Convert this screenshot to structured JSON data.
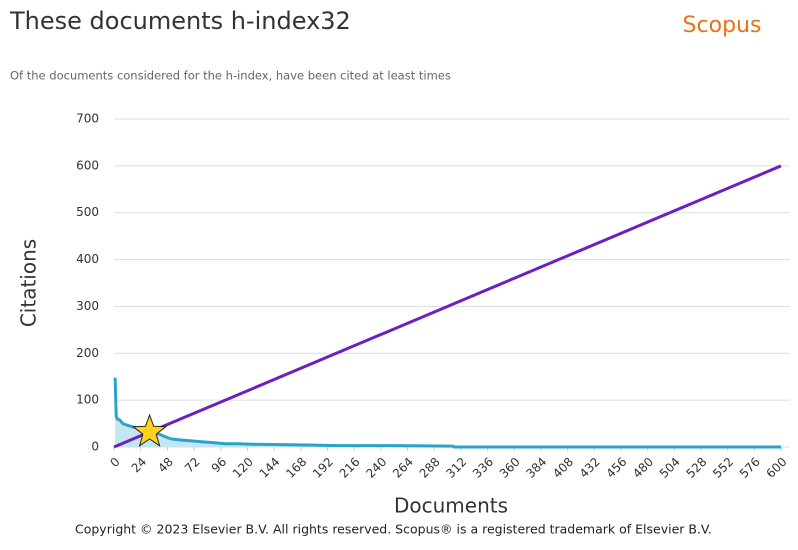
{
  "chart_data": {
    "type": "area",
    "title": "These documents h-index32",
    "subtitle": "Of the documents considered for the h-index, have been cited at least times",
    "brand": "Scopus",
    "footer": "Copyright © 2023 Elsevier B.V. All rights reserved. Scopus® is a registered trademark of Elsevier B.V.",
    "x_label": "Documents",
    "y_label": "Citations",
    "xlim": [
      0,
      600
    ],
    "ylim": [
      0,
      700
    ],
    "xticks": [
      0,
      24,
      48,
      72,
      96,
      120,
      144,
      168,
      192,
      216,
      240,
      264,
      288,
      312,
      336,
      360,
      384,
      408,
      432,
      456,
      480,
      504,
      528,
      552,
      576,
      600
    ],
    "yticks": [
      0,
      100,
      200,
      300,
      400,
      500,
      600,
      700
    ],
    "grid": true,
    "series": [
      {
        "color": "#2ba3c9",
        "fill": "#c3e7f2",
        "x": [
          1,
          2,
          3,
          5,
          8,
          10,
          14,
          18,
          22,
          26,
          30,
          32,
          36,
          40,
          44,
          48,
          52,
          60,
          70,
          80,
          90,
          100,
          110,
          125,
          150,
          180,
          200,
          250,
          305,
          306,
          400,
          500,
          600
        ],
        "values": [
          148,
          65,
          60,
          58,
          50,
          48,
          45,
          42,
          40,
          37,
          34,
          32,
          30,
          28,
          24,
          20,
          17,
          15,
          13,
          11,
          9,
          7,
          7,
          6,
          5,
          4,
          3,
          3,
          2,
          0,
          0,
          0,
          0
        ]
      },
      {
        "color": "#6b21c0",
        "x": [
          0,
          600
        ],
        "values": [
          0,
          600
        ]
      }
    ],
    "h_index": {
      "x": 32,
      "value": 32,
      "color": "#ffd21f"
    }
  }
}
